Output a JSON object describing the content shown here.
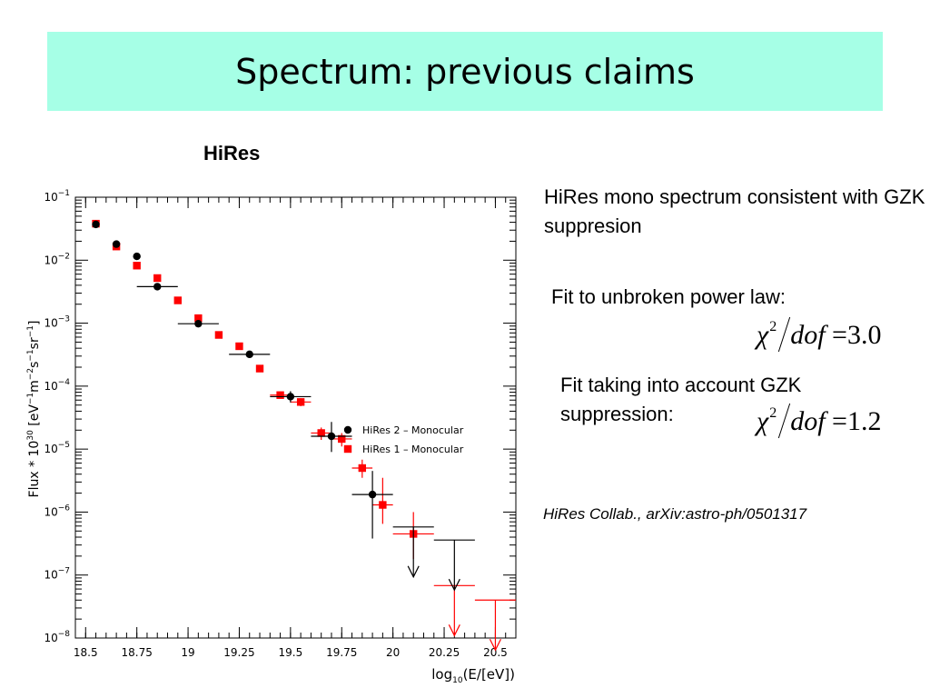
{
  "slide": {
    "title": "Spectrum: previous claims",
    "chart_heading": "HiRes",
    "text_1": "HiRes mono spectrum consistent with GZK suppresion",
    "text_2": "Fit to unbroken power law:",
    "text_3": "Fit taking into account GZK suppression:",
    "formula_1": {
      "symbol": "χ",
      "exponent": "2",
      "denominator": "dof",
      "equals": "=",
      "value": "3.0"
    },
    "formula_2": {
      "symbol": "χ",
      "exponent": "2",
      "denominator": "dof",
      "equals": "=",
      "value": "1.2"
    },
    "citation": "HiRes Collab., arXiv:astro-ph/0501317"
  },
  "chart_data": {
    "type": "scatter",
    "xlabel": "log10(E/[eV])",
    "ylabel": "Flux * 10^30 [eV^-1 m^-2 s^-1 sr^-1]",
    "xlim": [
      18.45,
      20.6
    ],
    "ylim_log10": [
      -8,
      -1
    ],
    "x_ticks": [
      18.5,
      18.75,
      19,
      19.25,
      19.5,
      19.75,
      20,
      20.25,
      20.5
    ],
    "x_tick_labels": [
      "18.5",
      "18.75",
      "19",
      "19.25",
      "19.5",
      "19.75",
      "20",
      "20.25",
      "20.5"
    ],
    "y_ticks_exp": [
      -1,
      -2,
      -3,
      -4,
      -5,
      -6,
      -7,
      -8
    ],
    "y_tick_base": "10",
    "legend_position": "top-right",
    "colors": {
      "hires2": "#000000",
      "hires1": "#ff0000"
    },
    "series": [
      {
        "name": "HiRes 2 – Monocular",
        "marker": "circle",
        "points": [
          {
            "x": 18.55,
            "y": 0.037,
            "lo": 0.033,
            "hi": 0.041
          },
          {
            "x": 18.65,
            "y": 0.018,
            "lo": 0.016,
            "hi": 0.02
          },
          {
            "x": 18.75,
            "y": 0.0115,
            "lo": 0.0105,
            "hi": 0.0125
          },
          {
            "x": 18.85,
            "y": 0.0038,
            "lo": 0.0034,
            "hi": 0.0042,
            "xerr": 0.1
          },
          {
            "x": 19.05,
            "y": 0.00098,
            "lo": 0.00088,
            "hi": 0.00108,
            "xerr": 0.1
          },
          {
            "x": 19.3,
            "y": 0.00032,
            "lo": 0.00028,
            "hi": 0.00036,
            "xerr": 0.1
          },
          {
            "x": 19.5,
            "y": 6.8e-05,
            "lo": 5.5e-05,
            "hi": 8.3e-05,
            "xerr": 0.1
          },
          {
            "x": 19.7,
            "y": 1.6e-05,
            "lo": 9e-06,
            "hi": 2.7e-05,
            "xerr": 0.1
          },
          {
            "x": 19.9,
            "y": 1.9e-06,
            "lo": 3.8e-07,
            "hi": 4.5e-06,
            "xerr": 0.1
          },
          {
            "x": 20.1,
            "y": 5.8e-07,
            "upper_limit": true,
            "xerr": 0.1
          },
          {
            "x": 20.3,
            "y": 3.6e-07,
            "upper_limit": true,
            "xerr": 0.1
          }
        ]
      },
      {
        "name": "HiRes 1 – Monocular",
        "marker": "square",
        "points": [
          {
            "x": 18.55,
            "y": 0.038,
            "lo": 0.035,
            "hi": 0.041
          },
          {
            "x": 18.65,
            "y": 0.0165,
            "lo": 0.015,
            "hi": 0.018
          },
          {
            "x": 18.75,
            "y": 0.0082,
            "lo": 0.0075,
            "hi": 0.009
          },
          {
            "x": 18.85,
            "y": 0.0052,
            "lo": 0.0047,
            "hi": 0.0057
          },
          {
            "x": 18.95,
            "y": 0.0023,
            "lo": 0.0021,
            "hi": 0.0025
          },
          {
            "x": 19.05,
            "y": 0.0012,
            "lo": 0.0011,
            "hi": 0.0013
          },
          {
            "x": 19.15,
            "y": 0.00065,
            "lo": 0.0006,
            "hi": 0.0007
          },
          {
            "x": 19.25,
            "y": 0.00043,
            "lo": 0.0004,
            "hi": 0.00046
          },
          {
            "x": 19.35,
            "y": 0.00019,
            "lo": 0.000175,
            "hi": 0.000205
          },
          {
            "x": 19.45,
            "y": 7.2e-05,
            "lo": 6.4e-05,
            "hi": 8e-05,
            "xerr": 0.05
          },
          {
            "x": 19.55,
            "y": 5.6e-05,
            "lo": 4.8e-05,
            "hi": 6.4e-05,
            "xerr": 0.05
          },
          {
            "x": 19.65,
            "y": 1.8e-05,
            "lo": 1.4e-05,
            "hi": 2.2e-05,
            "xerr": 0.05
          },
          {
            "x": 19.75,
            "y": 1.45e-05,
            "lo": 1.1e-05,
            "hi": 1.8e-05,
            "xerr": 0.05
          },
          {
            "x": 19.85,
            "y": 5e-06,
            "lo": 3.5e-06,
            "hi": 6.8e-06,
            "xerr": 0.05
          },
          {
            "x": 19.95,
            "y": 1.3e-06,
            "lo": 6.5e-07,
            "hi": 3.5e-06,
            "xerr": 0.05
          },
          {
            "x": 20.1,
            "y": 4.5e-07,
            "lo": 1.8e-07,
            "hi": 1e-06,
            "xerr": 0.1
          },
          {
            "x": 20.3,
            "y": 6.8e-08,
            "upper_limit": true,
            "xerr": 0.1
          },
          {
            "x": 20.5,
            "y": 4e-08,
            "upper_limit": true,
            "xerr": 0.1
          }
        ]
      }
    ]
  }
}
